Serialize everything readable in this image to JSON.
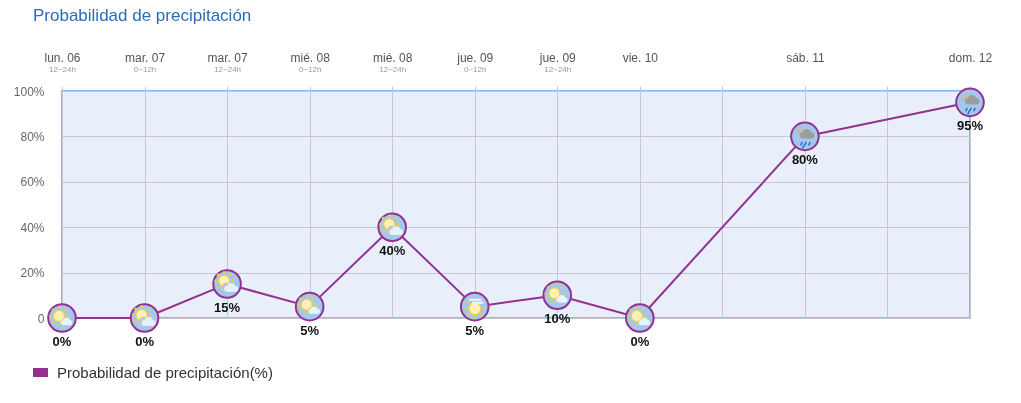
{
  "chart_data": {
    "type": "line",
    "title": "Probabilidad de precipitación",
    "categories": [
      "lun. 06 $_{12~24h}$",
      "mar. 07 $_{0~12h}$",
      "mar. 07 $_{12~24h}$",
      "mié. 08 $_{0~12h}$",
      "mié. 08 $_{12~24h}$",
      "jue. 09 $_{0~12h}$",
      "jue. 09 $_{12~24h}$",
      "vie. 10",
      null,
      "sáb. 11",
      null,
      "dom. 12"
    ],
    "ylim": [
      0,
      100
    ],
    "yticks": [
      0,
      {
        "value": 20,
        "label": "20%"
      },
      {
        "value": 40,
        "label": "40%"
      },
      {
        "value": 60,
        "label": "60%"
      },
      {
        "value": 80,
        "label": "80%"
      },
      {
        "value": 100,
        "label": "100%"
      }
    ],
    "series": [
      {
        "name": "Probabilidad de precipitación(%)",
        "color": "#94318f",
        "values": [
          0,
          0,
          15,
          5,
          40,
          5,
          10,
          0,
          null,
          80,
          null,
          95
        ],
        "value_labels": [
          "0%",
          "0%",
          "15%",
          "5%",
          "40%",
          "5%",
          "10%",
          "0%",
          null,
          "80%",
          null,
          "95%"
        ]
      }
    ],
    "grid": true,
    "legend": "bottom left",
    "marker": "circle",
    "line_style": "solid"
  }
}
